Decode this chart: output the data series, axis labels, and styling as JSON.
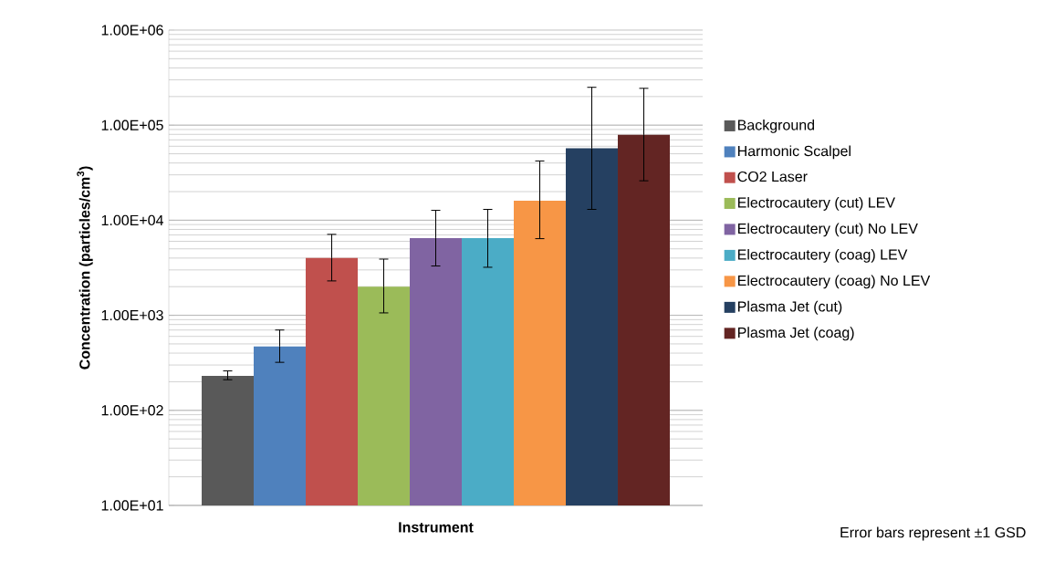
{
  "chart_data": {
    "type": "bar",
    "xlabel": "Instrument",
    "ylabel": "Concentration (particles/cm$^{3}$)",
    "categories": [
      null
    ],
    "log": "y",
    "grid": "y",
    "legend": "right",
    "ylim": [
      10,
      1000000
    ],
    "yticks": [
      {
        "value": 10,
        "label": "1.00E+01"
      },
      {
        "value": 100,
        "label": "1.00E+02"
      },
      {
        "value": 1000,
        "label": "1.00E+03"
      },
      {
        "value": 10000,
        "label": "1.00E+04"
      },
      {
        "value": 100000,
        "label": "1.00E+05"
      },
      {
        "value": 1000000,
        "label": "1.00E+06"
      }
    ],
    "series": [
      {
        "name": "Background",
        "color": "#595959",
        "values": [
          230
        ],
        "errors": [
          [
            210,
            260
          ]
        ]
      },
      {
        "name": "Harmonic Scalpel",
        "color": "#4f81bd",
        "values": [
          470
        ],
        "errors": [
          [
            320,
            700
          ]
        ]
      },
      {
        "name": "CO2 Laser",
        "color": "#c0504d",
        "values": [
          4000
        ],
        "errors": [
          [
            2300,
            7100
          ]
        ]
      },
      {
        "name": "Electrocautery (cut) LEV",
        "color": "#9bbb59",
        "values": [
          2000
        ],
        "errors": [
          [
            1060,
            3900
          ]
        ]
      },
      {
        "name": "Electrocautery (cut) No LEV",
        "color": "#8064a2",
        "values": [
          6500
        ],
        "errors": [
          [
            3300,
            12700
          ]
        ]
      },
      {
        "name": "Electrocautery (coag) LEV",
        "color": "#4bacc6",
        "values": [
          6500
        ],
        "errors": [
          [
            3200,
            13000
          ]
        ]
      },
      {
        "name": "Electrocautery (coag) No LEV",
        "color": "#f79646",
        "values": [
          16000
        ],
        "errors": [
          [
            6400,
            42000
          ]
        ]
      },
      {
        "name": "Plasma Jet (cut)",
        "color": "#254061",
        "values": [
          57000
        ],
        "errors": [
          [
            13000,
            250000
          ]
        ]
      },
      {
        "name": "Plasma Jet (coag)",
        "color": "#632523",
        "values": [
          79000
        ],
        "errors": [
          [
            26000,
            244000
          ]
        ]
      }
    ],
    "annotations": [
      "Error bars represent ±1 GSD"
    ]
  }
}
